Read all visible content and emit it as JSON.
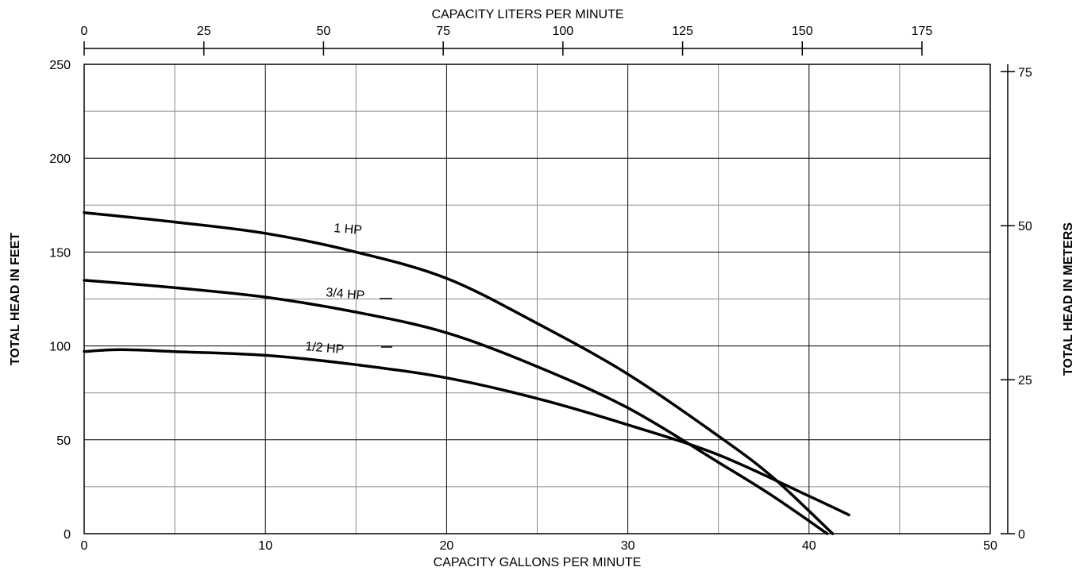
{
  "chart_data": {
    "type": "line",
    "grid": true,
    "x_axis": {
      "label": "CAPACITY GALLONS PER MINUTE",
      "range": [
        0,
        50
      ],
      "ticks": [
        0,
        10,
        20,
        30,
        40,
        50
      ],
      "minor_grid": [
        5,
        15,
        25,
        35,
        45
      ]
    },
    "y_axis": {
      "label": "TOTAL HEAD IN FEET",
      "range": [
        0,
        250
      ],
      "ticks": [
        0,
        50,
        100,
        150,
        200,
        250
      ],
      "minor_grid": [
        25,
        75,
        125,
        175,
        225
      ]
    },
    "x2_axis": {
      "label": "CAPACITY LITERS PER MINUTE",
      "range": [
        0,
        189.27
      ],
      "ticks": [
        0,
        25,
        50,
        75,
        100,
        125,
        150,
        175
      ]
    },
    "y2_axis": {
      "label": "TOTAL HEAD IN METERS",
      "range": [
        0,
        76.2
      ],
      "ticks": [
        0,
        25,
        50,
        75
      ]
    },
    "series": [
      {
        "name": "1 HP",
        "x": [
          0,
          5,
          10,
          15,
          20,
          25,
          30,
          35,
          38,
          41.3
        ],
        "y": [
          171,
          166,
          160,
          150,
          136,
          112,
          85,
          52,
          30,
          0
        ]
      },
      {
        "name": "3/4 HP",
        "x": [
          0,
          5,
          10,
          15,
          20,
          25,
          30,
          35,
          38,
          41.0
        ],
        "y": [
          135,
          131,
          126,
          118,
          107,
          89,
          67,
          38,
          20,
          0
        ]
      },
      {
        "name": "1/2 HP",
        "x": [
          0,
          2,
          5,
          10,
          15,
          20,
          25,
          30,
          35,
          40,
          42.2
        ],
        "y": [
          97,
          98,
          97,
          95,
          90,
          83,
          72,
          58,
          42,
          20,
          10
        ]
      }
    ]
  }
}
